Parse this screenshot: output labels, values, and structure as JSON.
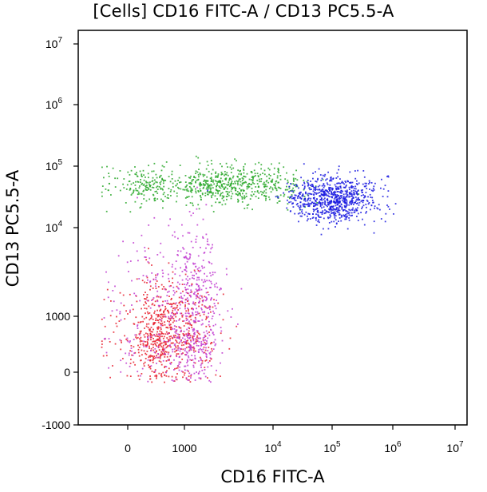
{
  "chart_data": {
    "type": "scatter",
    "title": "[Cells] CD16 FITC-A / CD13 PC5.5-A",
    "xlabel": "CD16 FITC-A",
    "ylabel": "CD13 PC5.5-A",
    "x_scale": "biexponential",
    "y_scale": "biexponential",
    "xlim": [
      -500,
      10000000
    ],
    "ylim": [
      -1000,
      10000000
    ],
    "x_ticks": [
      {
        "value": 0,
        "base": "0",
        "exp": ""
      },
      {
        "value": 1000,
        "base": "1000",
        "exp": ""
      },
      {
        "value": 10000,
        "base": "10",
        "exp": "4"
      },
      {
        "value": 100000,
        "base": "10",
        "exp": "5"
      },
      {
        "value": 1000000,
        "base": "10",
        "exp": "6"
      },
      {
        "value": 10000000,
        "base": "10",
        "exp": "7"
      }
    ],
    "y_ticks": [
      {
        "value": -1000,
        "base": "-1000",
        "exp": ""
      },
      {
        "value": 0,
        "base": "0",
        "exp": ""
      },
      {
        "value": 1000,
        "base": "1000",
        "exp": ""
      },
      {
        "value": 10000,
        "base": "10",
        "exp": "4"
      },
      {
        "value": 100000,
        "base": "10",
        "exp": "5"
      },
      {
        "value": 1000000,
        "base": "10",
        "exp": "6"
      },
      {
        "value": 10000000,
        "base": "10",
        "exp": "7"
      }
    ],
    "grid": false,
    "legend": "none",
    "populations": [
      {
        "color": "#e8202e",
        "cx": 700,
        "cy": 800,
        "sx": 0.18,
        "sy": 0.2,
        "n": 700
      },
      {
        "color": "#c13ad0",
        "cx": 1200,
        "cy": 1500,
        "sx": 0.12,
        "sy": 0.32,
        "n": 650
      },
      {
        "color": "#2aa82a",
        "cx": 3000,
        "cy": 50000,
        "sx": 0.35,
        "sy": 0.12,
        "n": 750
      },
      {
        "color": "#1a1ae0",
        "cx": 100000,
        "cy": 30000,
        "sx": 0.28,
        "sy": 0.14,
        "n": 800
      }
    ]
  }
}
